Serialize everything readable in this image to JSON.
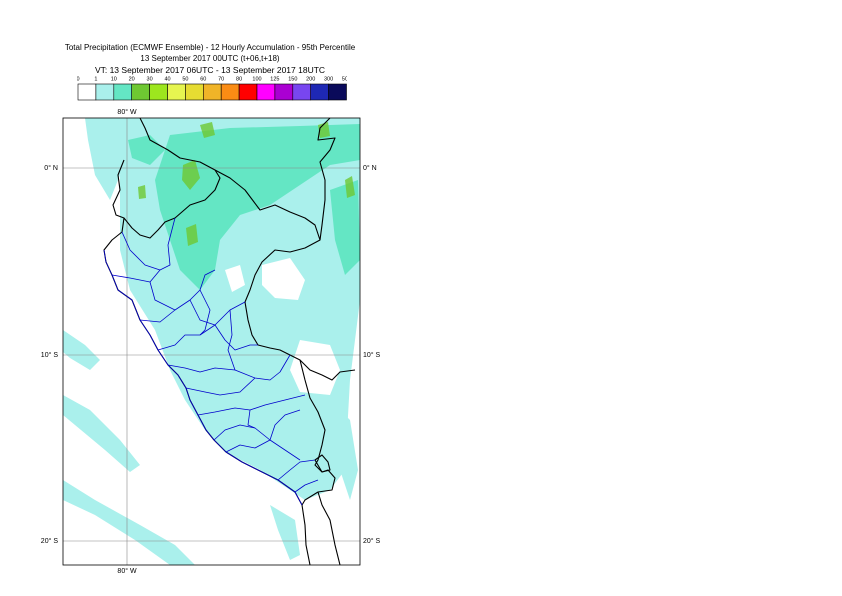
{
  "header": {
    "title": "Total Precipitation (ECMWF Ensemble) - 12 Hourly Accumulation - 95th Percentile",
    "run": "13 September 2017 00UTC (t+06,t+18)",
    "valid": "VT: 13 September 2017 06UTC - 13 September 2017 18UTC"
  },
  "legend": {
    "ticks": [
      "0",
      "1",
      "10",
      "20",
      "30",
      "40",
      "50",
      "60",
      "70",
      "80",
      "100",
      "125",
      "150",
      "200",
      "300",
      "500"
    ],
    "colors": [
      "#ffffff",
      "#aaf0ec",
      "#64e6c4",
      "#6ec832",
      "#9de61e",
      "#e6f550",
      "#e6dc32",
      "#f0b428",
      "#fa8c14",
      "#ff0000",
      "#ff00ff",
      "#aa00d2",
      "#7846f0",
      "#1e28b4",
      "#0a0a5a"
    ]
  },
  "map": {
    "lon_labels_top": [
      "80° W"
    ],
    "lon_labels_bottom": [
      "80° W"
    ],
    "lat_labels_left": [
      "0° N",
      "10° S",
      "20° S"
    ],
    "lat_labels_right": [
      "0° N",
      "10° S",
      "20° S"
    ],
    "colors": {
      "light": "#aaf0ec",
      "medium": "#64e6c4",
      "green": "#6ec832",
      "coast": "#000000",
      "admin": "#0000cc",
      "grid": "#888888"
    }
  }
}
